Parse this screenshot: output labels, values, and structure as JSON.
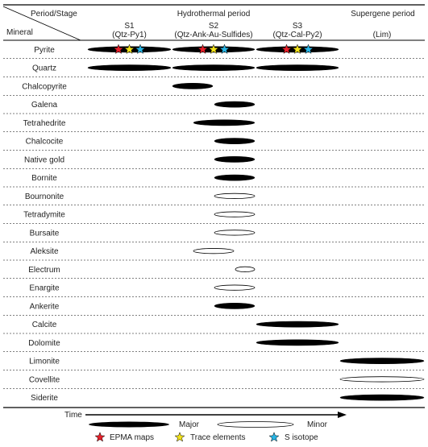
{
  "header": {
    "period_stage_label": "Period/Stage",
    "mineral_label": "Mineral",
    "hydrothermal_label": "Hydrothermal period",
    "supergene_label": "Supergene period",
    "stages": [
      {
        "name": "S1",
        "sub": "(Qtz-Py1)"
      },
      {
        "name": "S2",
        "sub": "(Qtz-Ank-Au-Sulfides)"
      },
      {
        "name": "S3",
        "sub": "(Qtz-Cal-Py2)"
      },
      {
        "name": "",
        "sub": "(Lim)"
      }
    ]
  },
  "minerals": [
    {
      "name": "Pyrite",
      "bars": [
        {
          "from": 0,
          "to": 1,
          "type": "major"
        },
        {
          "from": 1,
          "to": 2,
          "type": "major"
        },
        {
          "from": 2,
          "to": 3,
          "type": "major"
        }
      ],
      "stars": [
        {
          "stage": 0,
          "kinds": [
            "epma",
            "trace",
            "s"
          ]
        },
        {
          "stage": 1,
          "kinds": [
            "epma",
            "trace",
            "s"
          ]
        },
        {
          "stage": 2,
          "kinds": [
            "epma",
            "trace",
            "s"
          ]
        }
      ]
    },
    {
      "name": "Quartz",
      "bars": [
        {
          "from": 0,
          "to": 1,
          "type": "major"
        },
        {
          "from": 1,
          "to": 2,
          "type": "major"
        },
        {
          "from": 2,
          "to": 3,
          "type": "major"
        }
      ]
    },
    {
      "name": "Chalcopyrite",
      "bars": [
        {
          "from": 1.0,
          "to": 1.5,
          "type": "major"
        }
      ]
    },
    {
      "name": "Galena",
      "bars": [
        {
          "from": 1.5,
          "to": 2.0,
          "type": "major"
        }
      ]
    },
    {
      "name": "Tetrahedrite",
      "bars": [
        {
          "from": 1.25,
          "to": 2.0,
          "type": "major"
        }
      ]
    },
    {
      "name": "Chalcocite",
      "bars": [
        {
          "from": 1.5,
          "to": 2.0,
          "type": "major"
        }
      ]
    },
    {
      "name": "Native gold",
      "bars": [
        {
          "from": 1.5,
          "to": 2.0,
          "type": "major"
        }
      ]
    },
    {
      "name": "Bornite",
      "bars": [
        {
          "from": 1.5,
          "to": 2.0,
          "type": "major"
        }
      ]
    },
    {
      "name": "Bournonite",
      "bars": [
        {
          "from": 1.5,
          "to": 2.0,
          "type": "minor"
        }
      ]
    },
    {
      "name": "Tetradymite",
      "bars": [
        {
          "from": 1.5,
          "to": 2.0,
          "type": "minor"
        }
      ]
    },
    {
      "name": "Bursaite",
      "bars": [
        {
          "from": 1.5,
          "to": 2.0,
          "type": "minor"
        }
      ]
    },
    {
      "name": "Aleksite",
      "bars": [
        {
          "from": 1.25,
          "to": 1.75,
          "type": "minor"
        }
      ]
    },
    {
      "name": "Electrum",
      "bars": [
        {
          "from": 1.75,
          "to": 2.0,
          "type": "minor"
        }
      ]
    },
    {
      "name": "Enargite",
      "bars": [
        {
          "from": 1.5,
          "to": 2.0,
          "type": "minor"
        }
      ]
    },
    {
      "name": "Ankerite",
      "bars": [
        {
          "from": 1.5,
          "to": 2.0,
          "type": "major"
        }
      ]
    },
    {
      "name": "Calcite",
      "bars": [
        {
          "from": 2.0,
          "to": 3.0,
          "type": "major"
        }
      ]
    },
    {
      "name": "Dolomite",
      "bars": [
        {
          "from": 2.0,
          "to": 3.0,
          "type": "major"
        }
      ]
    },
    {
      "name": "Limonite",
      "bars": [
        {
          "from": 3.0,
          "to": 4.0,
          "type": "major"
        }
      ]
    },
    {
      "name": "Covellite",
      "bars": [
        {
          "from": 3.0,
          "to": 4.0,
          "type": "minor"
        }
      ]
    },
    {
      "name": "Siderite",
      "bars": [
        {
          "from": 3.0,
          "to": 4.0,
          "type": "major"
        }
      ]
    }
  ],
  "legend": {
    "time_label": "Time",
    "major_label": "Major",
    "minor_label": "Minor",
    "epma_label": "EPMA maps",
    "trace_label": "Trace elements",
    "s_label": "S isotope"
  },
  "colors": {
    "epma": "#e8202a",
    "trace": "#f2e21a",
    "s": "#29b6e6",
    "bar": "#000000"
  }
}
